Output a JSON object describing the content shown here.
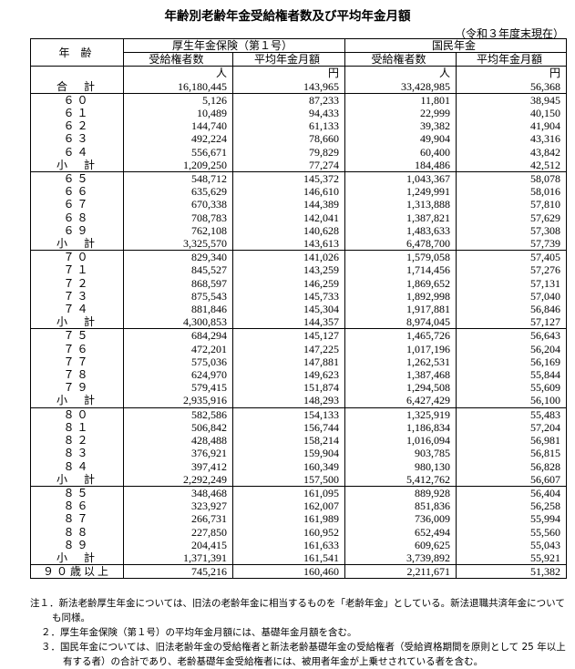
{
  "title": "年齢別老齢年金受給権者数及び平均年金月額",
  "as_of": "（令和３年度末現在）",
  "headers": {
    "age": "年　齢",
    "kosei": "厚生年金保険（第１号）",
    "kokumin": "国民年金",
    "recipients": "受給権者数",
    "avg_monthly": "平均年金月額",
    "unit_people": "人",
    "unit_yen": "円"
  },
  "total": {
    "label": "合　計",
    "values": [
      "16,180,445",
      "143,965",
      "33,428,985",
      "56,368"
    ]
  },
  "groups": [
    {
      "rows": [
        {
          "age": "６０",
          "values": [
            "5,126",
            "87,233",
            "11,801",
            "38,945"
          ]
        },
        {
          "age": "６１",
          "values": [
            "10,489",
            "94,433",
            "22,999",
            "40,150"
          ]
        },
        {
          "age": "６２",
          "values": [
            "144,740",
            "61,133",
            "39,382",
            "41,904"
          ]
        },
        {
          "age": "６３",
          "values": [
            "492,224",
            "78,660",
            "49,904",
            "43,316"
          ]
        },
        {
          "age": "６４",
          "values": [
            "556,671",
            "79,829",
            "60,400",
            "43,842"
          ]
        },
        {
          "age": "小　計",
          "values": [
            "1,209,250",
            "77,274",
            "184,486",
            "42,512"
          ]
        }
      ]
    },
    {
      "rows": [
        {
          "age": "６５",
          "values": [
            "548,712",
            "145,372",
            "1,043,367",
            "58,078"
          ]
        },
        {
          "age": "６６",
          "values": [
            "635,629",
            "146,610",
            "1,249,991",
            "58,016"
          ]
        },
        {
          "age": "６７",
          "values": [
            "670,338",
            "144,389",
            "1,313,888",
            "57,810"
          ]
        },
        {
          "age": "６８",
          "values": [
            "708,783",
            "142,041",
            "1,387,821",
            "57,629"
          ]
        },
        {
          "age": "６９",
          "values": [
            "762,108",
            "140,628",
            "1,483,633",
            "57,308"
          ]
        },
        {
          "age": "小　計",
          "values": [
            "3,325,570",
            "143,613",
            "6,478,700",
            "57,739"
          ]
        }
      ]
    },
    {
      "rows": [
        {
          "age": "７０",
          "values": [
            "829,340",
            "141,026",
            "1,579,058",
            "57,405"
          ]
        },
        {
          "age": "７１",
          "values": [
            "845,527",
            "143,259",
            "1,714,456",
            "57,276"
          ]
        },
        {
          "age": "７２",
          "values": [
            "868,597",
            "146,259",
            "1,869,652",
            "57,131"
          ]
        },
        {
          "age": "７３",
          "values": [
            "875,543",
            "145,733",
            "1,892,998",
            "57,040"
          ]
        },
        {
          "age": "７４",
          "values": [
            "881,846",
            "145,304",
            "1,917,881",
            "56,846"
          ]
        },
        {
          "age": "小　計",
          "values": [
            "4,300,853",
            "144,357",
            "8,974,045",
            "57,127"
          ]
        }
      ]
    },
    {
      "rows": [
        {
          "age": "７５",
          "values": [
            "684,294",
            "145,127",
            "1,465,726",
            "56,643"
          ]
        },
        {
          "age": "７６",
          "values": [
            "472,201",
            "147,225",
            "1,017,196",
            "56,204"
          ]
        },
        {
          "age": "７７",
          "values": [
            "575,036",
            "147,881",
            "1,262,531",
            "56,169"
          ]
        },
        {
          "age": "７８",
          "values": [
            "624,970",
            "149,623",
            "1,387,468",
            "55,844"
          ]
        },
        {
          "age": "７９",
          "values": [
            "579,415",
            "151,874",
            "1,294,508",
            "55,609"
          ]
        },
        {
          "age": "小　計",
          "values": [
            "2,935,916",
            "148,293",
            "6,427,429",
            "56,100"
          ]
        }
      ]
    },
    {
      "rows": [
        {
          "age": "８０",
          "values": [
            "582,586",
            "154,133",
            "1,325,919",
            "55,483"
          ]
        },
        {
          "age": "８１",
          "values": [
            "506,842",
            "156,744",
            "1,186,834",
            "57,204"
          ]
        },
        {
          "age": "８２",
          "values": [
            "428,488",
            "158,214",
            "1,016,094",
            "56,981"
          ]
        },
        {
          "age": "８３",
          "values": [
            "376,921",
            "159,904",
            "903,785",
            "56,815"
          ]
        },
        {
          "age": "８４",
          "values": [
            "397,412",
            "160,349",
            "980,130",
            "56,828"
          ]
        },
        {
          "age": "小　計",
          "values": [
            "2,292,249",
            "157,500",
            "5,412,762",
            "56,607"
          ]
        }
      ]
    },
    {
      "rows": [
        {
          "age": "８５",
          "values": [
            "348,468",
            "161,095",
            "889,928",
            "56,404"
          ]
        },
        {
          "age": "８６",
          "values": [
            "323,927",
            "162,007",
            "851,836",
            "56,258"
          ]
        },
        {
          "age": "８７",
          "values": [
            "266,731",
            "161,989",
            "736,009",
            "55,994"
          ]
        },
        {
          "age": "８８",
          "values": [
            "227,850",
            "160,952",
            "652,494",
            "55,560"
          ]
        },
        {
          "age": "８９",
          "values": [
            "204,415",
            "161,633",
            "609,625",
            "55,043"
          ]
        },
        {
          "age": "小　計",
          "values": [
            "1,371,391",
            "161,541",
            "3,739,892",
            "55,921"
          ]
        }
      ]
    },
    {
      "rows": [
        {
          "age": "９０歳以上",
          "values": [
            "745,216",
            "160,460",
            "2,211,671",
            "51,382"
          ]
        }
      ]
    }
  ],
  "notes": [
    "注１．新法老齢厚生年金については、旧法の老齢年金に相当するものを「老齢年金」としている。新法退職共済年金についても同様。",
    "２．厚生年金保険（第１号）の平均年金月額には、基礎年金月額を含む。",
    "３．国民年金については、旧法老齢年金の受給権者と新法老齢基礎年金の受給権者（受給資格期間を原則として 25 年以上有する者）の合計であり、老齢基礎年金受給権者には、被用者年金が上乗せされている者を含む。"
  ]
}
